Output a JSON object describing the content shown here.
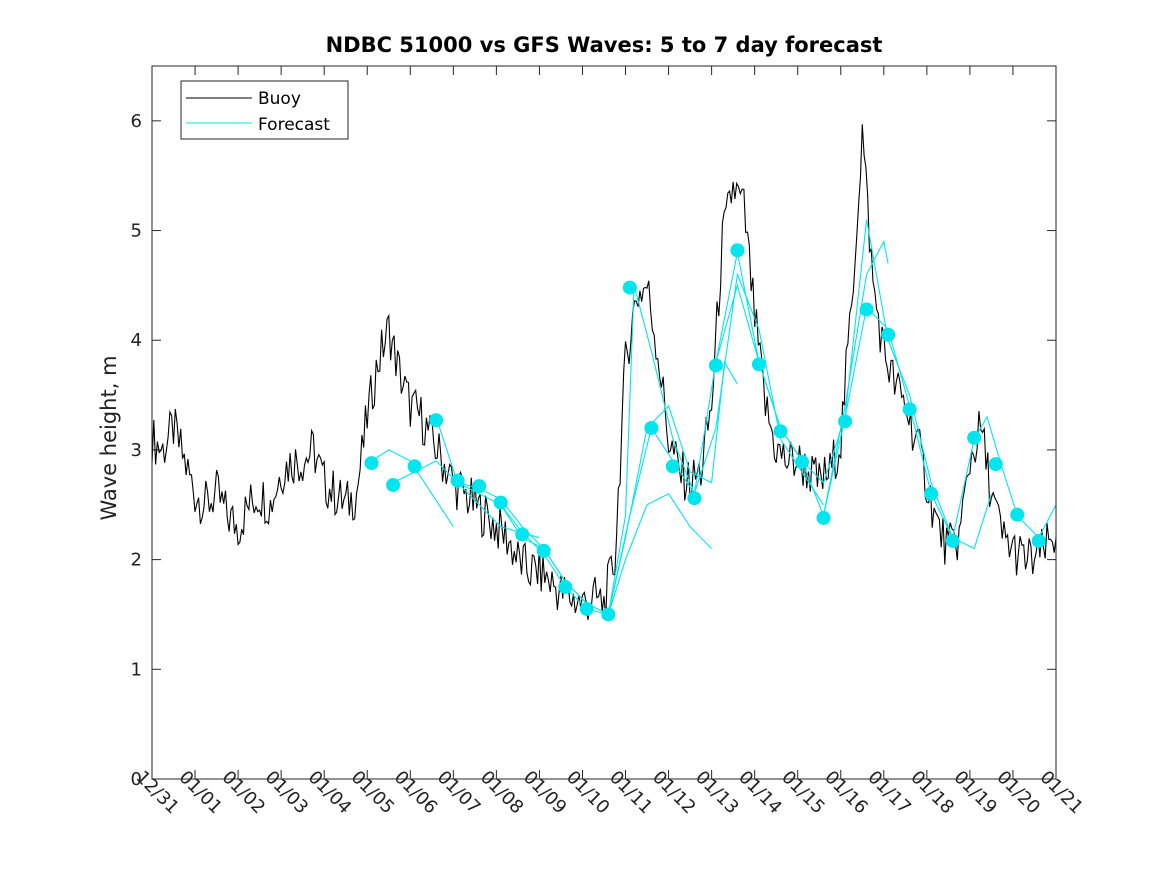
{
  "chart_data": {
    "type": "line",
    "title": "NDBC 51000 vs GFS Waves: 5 to 7 day forecast",
    "xlabel": "",
    "ylabel": "Wave height, m",
    "xlim": [
      0,
      21
    ],
    "ylim": [
      0,
      6.5
    ],
    "x_tick_labels": [
      "12/31",
      "01/01",
      "01/02",
      "01/03",
      "01/04",
      "01/05",
      "01/06",
      "01/07",
      "01/08",
      "01/09",
      "01/10",
      "01/11",
      "01/12",
      "01/13",
      "01/14",
      "01/15",
      "01/16",
      "01/17",
      "01/18",
      "01/19",
      "01/20",
      "01/21"
    ],
    "y_ticks": [
      0,
      1,
      2,
      3,
      4,
      5,
      6
    ],
    "legend": {
      "location": "top-left",
      "entries": [
        "Buoy",
        "Forecast"
      ]
    },
    "colors": {
      "buoy": "#000000",
      "forecast": "#00e5ee"
    },
    "series": [
      {
        "name": "Buoy",
        "x": [
          0,
          0.25,
          0.5,
          0.75,
          1,
          1.25,
          1.5,
          1.75,
          2,
          2.25,
          2.5,
          2.75,
          3,
          3.25,
          3.5,
          3.75,
          4,
          4.25,
          4.5,
          4.75,
          5,
          5.25,
          5.5,
          5.75,
          6,
          6.25,
          6.5,
          6.75,
          7,
          7.25,
          7.5,
          7.75,
          8,
          8.25,
          8.5,
          8.75,
          9,
          9.25,
          9.5,
          9.75,
          10,
          10.25,
          10.5,
          10.75,
          11,
          11.25,
          11.5,
          11.75,
          12,
          12.25,
          12.5,
          12.75,
          13,
          13.25,
          13.5,
          13.75,
          14,
          14.25,
          14.5,
          14.75,
          15,
          15.25,
          15.5,
          15.75,
          16,
          16.25,
          16.5,
          16.75,
          17,
          17.25,
          17.5,
          17.75,
          18,
          18.25,
          18.5,
          18.75,
          19,
          19.25,
          19.5,
          19.75,
          20,
          20.25,
          20.5,
          20.75,
          21
        ],
        "values": [
          3.1,
          3.0,
          3.2,
          2.9,
          2.6,
          2.5,
          2.6,
          2.4,
          2.3,
          2.5,
          2.6,
          2.5,
          2.8,
          2.9,
          2.9,
          3.0,
          2.7,
          2.6,
          2.5,
          2.6,
          3.3,
          3.8,
          4.1,
          3.7,
          3.4,
          3.3,
          3.1,
          2.9,
          2.7,
          2.6,
          2.5,
          2.4,
          2.3,
          2.2,
          2.0,
          1.9,
          1.9,
          1.8,
          1.7,
          1.65,
          1.6,
          1.65,
          1.6,
          2.0,
          3.8,
          4.4,
          4.5,
          3.9,
          3.1,
          2.8,
          2.7,
          2.8,
          3.4,
          4.9,
          5.4,
          5.2,
          4.2,
          3.4,
          3.0,
          2.9,
          2.9,
          2.8,
          2.7,
          2.8,
          3.1,
          4.3,
          5.9,
          4.5,
          3.9,
          3.6,
          3.4,
          3.1,
          2.7,
          2.3,
          2.1,
          2.2,
          2.9,
          3.2,
          2.6,
          2.2,
          2.1,
          2.0,
          2.0,
          2.1,
          2.2
        ]
      },
      {
        "name": "Forecast run 1",
        "x": [
          5.1,
          5.5,
          6,
          6.5,
          7
        ],
        "values": [
          2.9,
          3.0,
          2.9,
          2.6,
          2.3
        ]
      },
      {
        "name": "Forecast run 2",
        "x": [
          5.6,
          6.1,
          6.6,
          7.1,
          7.6,
          8.1,
          9.0
        ],
        "values": [
          2.7,
          2.8,
          2.9,
          2.7,
          2.5,
          2.3,
          2.2
        ]
      },
      {
        "name": "Forecast run 3",
        "x": [
          6.6,
          7.1,
          7.6,
          8.1,
          8.6,
          9.1,
          9.6,
          10.1,
          10.6,
          11.0,
          11.5,
          12.0,
          12.5,
          13.0
        ],
        "values": [
          3.3,
          2.7,
          2.6,
          2.5,
          2.2,
          2.1,
          1.8,
          1.6,
          1.5,
          2.0,
          2.5,
          2.6,
          2.3,
          2.1
        ]
      },
      {
        "name": "Forecast run 4",
        "x": [
          7.1,
          7.6,
          8.1,
          8.6,
          9.1,
          9.6,
          10.1,
          10.6,
          11.0,
          11.5,
          12.0,
          12.5,
          13.0,
          13.3,
          13.6
        ],
        "values": [
          2.7,
          2.65,
          2.55,
          2.3,
          2.1,
          1.8,
          1.6,
          1.5,
          2.2,
          3.2,
          3.4,
          2.8,
          2.7,
          3.8,
          3.6
        ]
      },
      {
        "name": "Forecast run 5",
        "x": [
          8.1,
          8.6,
          9.1,
          9.6,
          10.1,
          10.6,
          11.0,
          11.2,
          11.6,
          12.1,
          12.6,
          13.1,
          13.6,
          14.1,
          14.6,
          15.1,
          15.6
        ],
        "values": [
          2.5,
          2.25,
          2.05,
          1.75,
          1.55,
          1.5,
          2.4,
          4.5,
          3.9,
          3.1,
          2.6,
          3.2,
          4.6,
          4.1,
          3.1,
          2.8,
          2.5
        ]
      },
      {
        "name": "Forecast run 6",
        "x": [
          10.6,
          11.1,
          11.6,
          12.1,
          12.6,
          13.1,
          13.6,
          14.1,
          14.6,
          15.1,
          15.6,
          16.1,
          16.6,
          17.1,
          17.6,
          18.1,
          18.6,
          19.1,
          19.5
        ],
        "values": [
          1.5,
          2.4,
          3.2,
          2.9,
          2.6,
          3.8,
          4.8,
          3.8,
          3.2,
          2.9,
          2.4,
          3.3,
          4.3,
          4.1,
          3.4,
          2.6,
          2.2,
          2.1,
          2.6
        ]
      },
      {
        "name": "Forecast run 7",
        "x": [
          13.1,
          13.6,
          14.1,
          14.6,
          15.1,
          15.6,
          16.1,
          16.6,
          17.1,
          17.6,
          18.1,
          18.6,
          19.1,
          19.4,
          19.7,
          20.1,
          20.6,
          21.0
        ],
        "values": [
          3.8,
          4.5,
          3.8,
          3.2,
          2.9,
          2.7,
          3.3,
          5.1,
          4.0,
          3.5,
          2.7,
          2.2,
          3.1,
          3.3,
          2.9,
          2.4,
          2.2,
          2.5
        ]
      },
      {
        "name": "Forecast run 8",
        "x": [
          15.6,
          16.1,
          16.6,
          17.0,
          17.1
        ],
        "values": [
          2.4,
          3.4,
          4.6,
          4.9,
          4.7
        ]
      },
      {
        "name": "Forecast dots",
        "x": [
          5.1,
          5.6,
          6.1,
          6.6,
          7.1,
          7.6,
          8.1,
          8.6,
          9.1,
          9.6,
          10.1,
          10.6,
          11.1,
          11.6,
          12.1,
          12.6,
          13.1,
          13.6,
          14.1,
          14.6,
          15.1,
          15.6,
          16.1,
          16.6,
          17.1,
          17.6,
          18.1,
          18.6,
          19.1,
          19.6,
          20.1,
          20.6
        ],
        "values": [
          2.88,
          2.68,
          2.85,
          3.27,
          2.72,
          2.67,
          2.52,
          2.23,
          2.08,
          1.75,
          1.55,
          1.5,
          4.48,
          3.2,
          2.85,
          2.56,
          3.77,
          4.82,
          3.78,
          3.17,
          2.89,
          2.38,
          3.26,
          4.28,
          4.05,
          3.37,
          2.6,
          2.17,
          3.11,
          2.87,
          2.41,
          2.17
        ]
      }
    ]
  }
}
